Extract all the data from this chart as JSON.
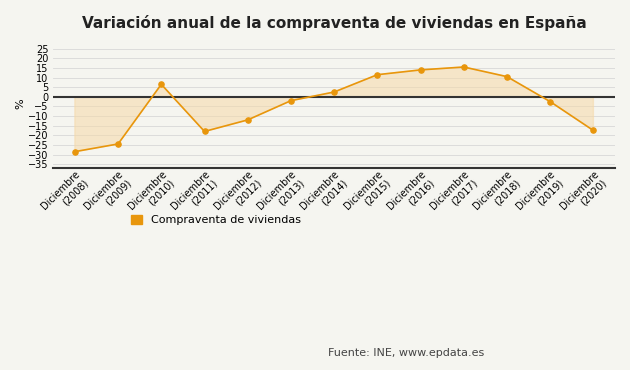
{
  "title": "Variación anual de la compraventa de viviendas en España",
  "ylabel": "%",
  "categories": [
    "Diciembre\n(2008)",
    "Diciembre\n(2009)",
    "Diciembre\n(2010)",
    "Diciembre\n(2011)",
    "Diciembre\n(2012)",
    "Diciembre\n(2013)",
    "Diciembre\n(2014)",
    "Diciembre\n(2015)",
    "Diciembre\n(2016)",
    "Diciembre\n(2017)",
    "Diciembre\n(2018)",
    "Diciembre\n(2019)",
    "Diciembre\n(2020)"
  ],
  "values": [
    -28.5,
    -24.5,
    6.5,
    -18.0,
    -12.0,
    -2.0,
    2.5,
    11.5,
    14.0,
    15.5,
    10.5,
    -2.5,
    -17.5
  ],
  "line_color": "#E8960C",
  "fill_color": "#F5D9A8",
  "zero_line_color": "#333333",
  "bottom_line_color": "#333333",
  "legend_label": "Compraventa de viviendas",
  "source_text": "Fuente: INE, www.epdata.es",
  "ylim": [
    -37,
    30
  ],
  "yticks": [
    -35,
    -30,
    -25,
    -20,
    -15,
    -10,
    -5,
    0,
    5,
    10,
    15,
    20,
    25
  ],
  "background_color": "#f5f5f0",
  "grid_color": "#d8d8d8",
  "title_fontsize": 11,
  "axis_fontsize": 7,
  "legend_fontsize": 8
}
